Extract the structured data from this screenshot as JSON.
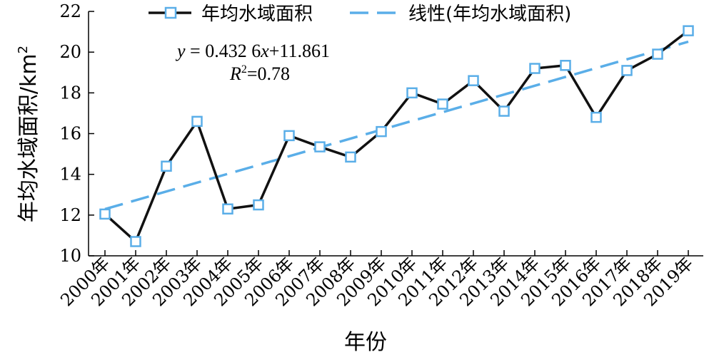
{
  "chart_data": {
    "type": "line",
    "categories": [
      "2000年",
      "2001年",
      "2002年",
      "2003年",
      "2004年",
      "2005年",
      "2006年",
      "2007年",
      "2008年",
      "2009年",
      "2010年",
      "2011年",
      "2012年",
      "2013年",
      "2014年",
      "2015年",
      "2016年",
      "2017年",
      "2018年",
      "2019年"
    ],
    "series": [
      {
        "name": "年均水域面积",
        "values": [
          12.05,
          10.7,
          14.4,
          16.6,
          12.3,
          12.5,
          15.9,
          15.35,
          14.85,
          16.1,
          18.0,
          17.45,
          18.6,
          17.1,
          19.2,
          19.35,
          16.8,
          19.1,
          19.9,
          21.05
        ],
        "color": "#111111",
        "marker_color": "#5aaee8"
      },
      {
        "name": "线性(年均水域面积)",
        "trend": {
          "slope": 0.4326,
          "intercept": 11.861
        },
        "color": "#5aaee8"
      }
    ],
    "xlabel": "年份",
    "ylabel": "年均水域面积/km",
    "ylabel_sup": "2",
    "ylim": [
      10,
      22
    ],
    "yticks": [
      10,
      12,
      14,
      16,
      18,
      20,
      22
    ],
    "equation": {
      "line1_y": "y",
      "line1_rest": " = 0.432 6",
      "line1_x": "x",
      "line1_tail": "+11.861",
      "line2_r": "R",
      "line2_sup": "2",
      "line2_rest": "=0.78"
    },
    "legend_position": "top",
    "grid": false
  }
}
